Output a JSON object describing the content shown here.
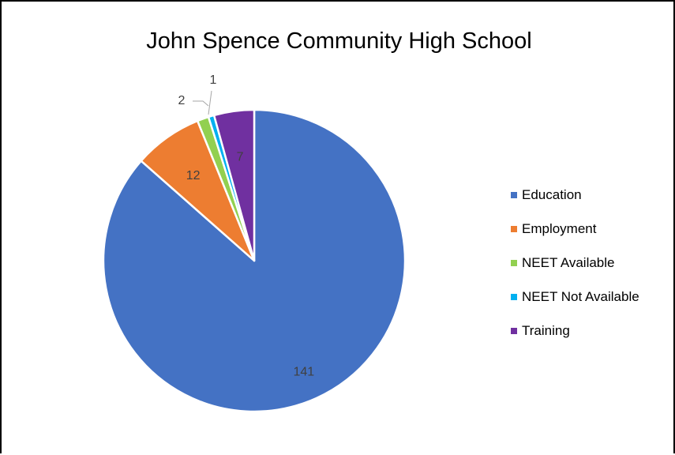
{
  "chart_data": {
    "type": "pie",
    "title": "John Spence Community High School",
    "categories": [
      "Education",
      "Employment",
      "NEET Available",
      "NEET Not Available",
      "Training"
    ],
    "values": [
      141,
      12,
      2,
      1,
      7
    ],
    "data_labels": [
      "141",
      "12",
      "2",
      "1",
      "7"
    ],
    "colors": [
      "#4472C4",
      "#ED7D31",
      "#92D050",
      "#00B0F0",
      "#7030A0"
    ],
    "legend": "right",
    "start_angle": "12 o'clock",
    "direction": "clockwise"
  }
}
